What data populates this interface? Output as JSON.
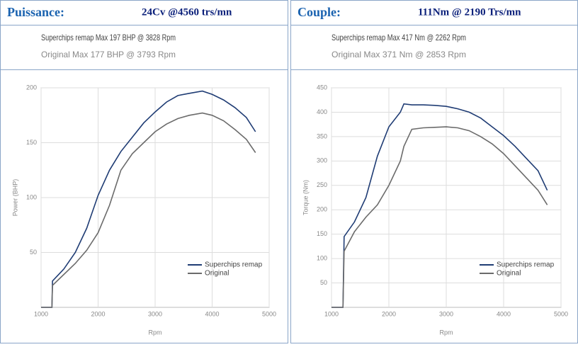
{
  "chart_data": [
    {
      "type": "line",
      "title": "Puissance:",
      "subtitle": "24Cv @4560 trs/mn",
      "annotations": [
        "Superchips remap Max 197 BHP @ 3828 Rpm",
        "Original Max 177 BHP @ 3793 Rpm"
      ],
      "xlabel": "Rpm",
      "ylabel": "Power (BHP)",
      "x": [
        1000,
        1190,
        1200,
        1400,
        1600,
        1800,
        2000,
        2200,
        2400,
        2600,
        2800,
        3000,
        3200,
        3400,
        3600,
        3828,
        4000,
        4200,
        4400,
        4600,
        4760
      ],
      "series": [
        {
          "name": "Superchips remap",
          "color": "#1f3c74",
          "values": [
            0,
            0,
            24,
            35,
            50,
            72,
            102,
            125,
            142,
            155,
            168,
            178,
            187,
            193,
            195,
            197,
            194,
            189,
            182,
            173,
            160
          ]
        },
        {
          "name": "Original",
          "color": "#6b6b6b",
          "values": [
            0,
            0,
            20,
            30,
            40,
            52,
            68,
            93,
            125,
            140,
            150,
            160,
            167,
            172,
            175,
            177,
            175,
            170,
            162,
            153,
            141
          ]
        }
      ],
      "xlim": [
        1000,
        5000
      ],
      "xticks": [
        1000,
        2000,
        3000,
        4000,
        5000
      ],
      "ylim": [
        0,
        200
      ],
      "yticks": [
        50,
        100,
        150,
        200
      ],
      "grid": true,
      "legend": "lower right"
    },
    {
      "type": "line",
      "title": "Couple:",
      "subtitle": "111Nm @ 2190 Trs/mn",
      "annotations": [
        "Superchips remap Max 417 Nm @ 2262 Rpm",
        "Original Max 371 Nm @ 2853 Rpm"
      ],
      "xlabel": "Rpm",
      "ylabel": "Torque (Nm)",
      "x": [
        1000,
        1200,
        1220,
        1400,
        1600,
        1800,
        2000,
        2200,
        2262,
        2400,
        2600,
        2800,
        3000,
        3200,
        3400,
        3600,
        3800,
        4000,
        4200,
        4400,
        4600,
        4760
      ],
      "series": [
        {
          "name": "Superchips remap",
          "color": "#1f3c74",
          "values": [
            0,
            0,
            145,
            175,
            225,
            310,
            370,
            400,
            417,
            415,
            415,
            414,
            412,
            407,
            400,
            388,
            370,
            352,
            330,
            305,
            280,
            240
          ]
        },
        {
          "name": "Original",
          "color": "#6b6b6b",
          "values": [
            0,
            0,
            115,
            155,
            185,
            210,
            250,
            300,
            330,
            365,
            368,
            369,
            370,
            368,
            362,
            350,
            335,
            315,
            290,
            265,
            240,
            210
          ]
        }
      ],
      "xlim": [
        1000,
        5000
      ],
      "xticks": [
        1000,
        2000,
        3000,
        4000,
        5000
      ],
      "ylim": [
        0,
        450
      ],
      "yticks": [
        50,
        100,
        150,
        200,
        250,
        300,
        350,
        400,
        450
      ],
      "grid": true,
      "legend": "lower right"
    }
  ]
}
